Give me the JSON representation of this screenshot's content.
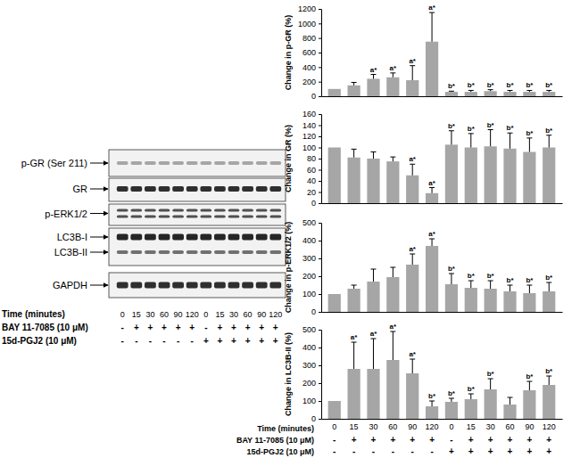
{
  "chart_data": [
    {
      "type": "bar",
      "y_label": "Change in p-GR (%)",
      "categories": [
        "0",
        "15",
        "30",
        "60",
        "90",
        "120",
        "0",
        "15",
        "30",
        "60",
        "90",
        "120"
      ],
      "values": [
        100,
        150,
        240,
        260,
        220,
        750,
        60,
        60,
        70,
        60,
        60,
        60
      ],
      "errors": [
        0,
        40,
        60,
        60,
        200,
        400,
        10,
        20,
        20,
        20,
        20,
        20
      ],
      "annotations": [
        null,
        null,
        "a*",
        "a*",
        "a*",
        "a*",
        "b*",
        "b*",
        "b*",
        "b*",
        "b*",
        "b*"
      ],
      "color": "#a6a6a6",
      "ylim": [
        0,
        1200
      ],
      "yticks": [
        0,
        200,
        400,
        600,
        800,
        1000,
        1200
      ],
      "tick_labels": "y"
    },
    {
      "type": "bar",
      "y_label": "Change in GR (%)",
      "categories": [
        "0",
        "15",
        "30",
        "60",
        "90",
        "120",
        "0",
        "15",
        "30",
        "60",
        "90",
        "120"
      ],
      "values": [
        100,
        82,
        80,
        75,
        50,
        18,
        105,
        100,
        102,
        98,
        92,
        100
      ],
      "errors": [
        0,
        15,
        12,
        8,
        20,
        10,
        25,
        25,
        30,
        28,
        25,
        22
      ],
      "annotations": [
        null,
        null,
        null,
        null,
        "a*",
        "a*",
        "b*",
        "b*",
        "b*",
        "b*",
        "b*",
        "b*"
      ],
      "color": "#a6a6a6",
      "ylim": [
        0,
        160
      ],
      "yticks": [
        0,
        20,
        40,
        60,
        80,
        100,
        120,
        140,
        160
      ],
      "tick_labels": "y"
    },
    {
      "type": "bar",
      "y_label": "Change in p-ERK1/2 (%)",
      "categories": [
        "0",
        "15",
        "30",
        "60",
        "90",
        "120",
        "0",
        "15",
        "30",
        "60",
        "90",
        "120"
      ],
      "values": [
        100,
        130,
        170,
        195,
        265,
        370,
        155,
        135,
        130,
        115,
        105,
        115
      ],
      "errors": [
        0,
        20,
        70,
        55,
        60,
        40,
        60,
        40,
        45,
        35,
        45,
        50
      ],
      "annotations": [
        null,
        null,
        null,
        null,
        "a*",
        "a*",
        "b*",
        "b*",
        "b*",
        "b*",
        "b*",
        "b*"
      ],
      "color": "#a6a6a6",
      "ylim": [
        0,
        500
      ],
      "yticks": [
        0,
        100,
        200,
        300,
        400,
        500
      ],
      "tick_labels": "y"
    },
    {
      "type": "bar",
      "y_label": "Change in LC3B-II (%)",
      "x_label": "Time (minutes)",
      "categories": [
        "0",
        "15",
        "30",
        "60",
        "90",
        "120",
        "0",
        "15",
        "30",
        "60",
        "90",
        "120"
      ],
      "values": [
        100,
        280,
        280,
        330,
        255,
        70,
        95,
        110,
        165,
        80,
        160,
        190
      ],
      "errors": [
        0,
        150,
        170,
        160,
        80,
        30,
        20,
        30,
        60,
        40,
        50,
        50
      ],
      "annotations": [
        null,
        "a*",
        "a*",
        "a*",
        "a*",
        "b*",
        "b*",
        "b*",
        "b*",
        null,
        "b*",
        "b*"
      ],
      "treatments": [
        {
          "name": "BAY 11-7085 (10 μM)",
          "signs": [
            "-",
            "+",
            "+",
            "+",
            "+",
            "+",
            "-",
            "+",
            "+",
            "+",
            "+",
            "+"
          ]
        },
        {
          "name": "15d-PGJ2 (10 μM)",
          "signs": [
            "-",
            "-",
            "-",
            "-",
            "-",
            "-",
            "+",
            "+",
            "+",
            "+",
            "+",
            "+"
          ]
        }
      ],
      "color": "#a6a6a6",
      "ylim": [
        0,
        500
      ],
      "yticks": [
        0,
        100,
        200,
        300,
        400,
        500
      ]
    }
  ],
  "blot": {
    "bands": [
      "p-GR (Ser 211)",
      "GR",
      "p-ERK1/2",
      "LC3B-I",
      "LC3B-II",
      "GAPDH"
    ],
    "time_label": "Time (minutes)",
    "times": [
      "0",
      "15",
      "30",
      "60",
      "90",
      "120",
      "0",
      "15",
      "30",
      "60",
      "90",
      "120"
    ],
    "treatments": [
      {
        "name": "BAY 11-7085 (10 μM)",
        "signs": [
          "-",
          "+",
          "+",
          "+",
          "+",
          "+",
          "-",
          "+",
          "+",
          "+",
          "+",
          "+"
        ]
      },
      {
        "name": "15d-PGJ2 (10 μM)",
        "signs": [
          "-",
          "-",
          "-",
          "-",
          "-",
          "-",
          "+",
          "+",
          "+",
          "+",
          "+",
          "+"
        ]
      }
    ]
  }
}
